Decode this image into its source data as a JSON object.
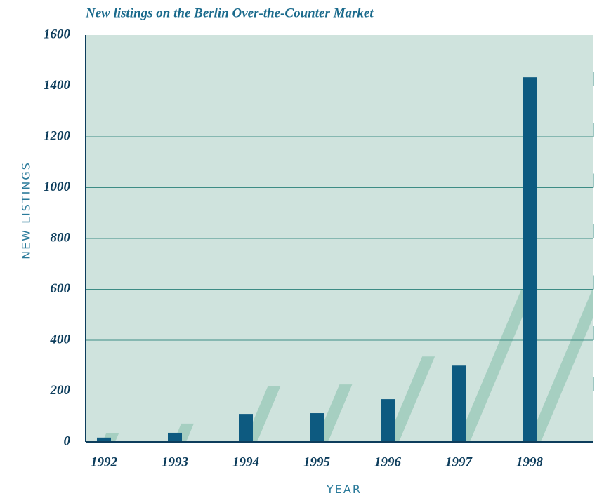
{
  "chart_data": {
    "type": "bar",
    "title": "New listings on the Berlin Over-the-Counter Market",
    "x_label": "YEAR",
    "y_label": "NEW LISTINGS",
    "categories": [
      "1992",
      "1993",
      "1994",
      "1995",
      "1996",
      "1997",
      "1998"
    ],
    "values": [
      17,
      36,
      110,
      113,
      168,
      300,
      1434
    ],
    "color": "#0d5a80",
    "ylim": [
      0,
      1600
    ],
    "yticks": [
      0,
      200,
      400,
      600,
      800,
      1000,
      1200,
      1400,
      1600
    ],
    "grid": true
  }
}
